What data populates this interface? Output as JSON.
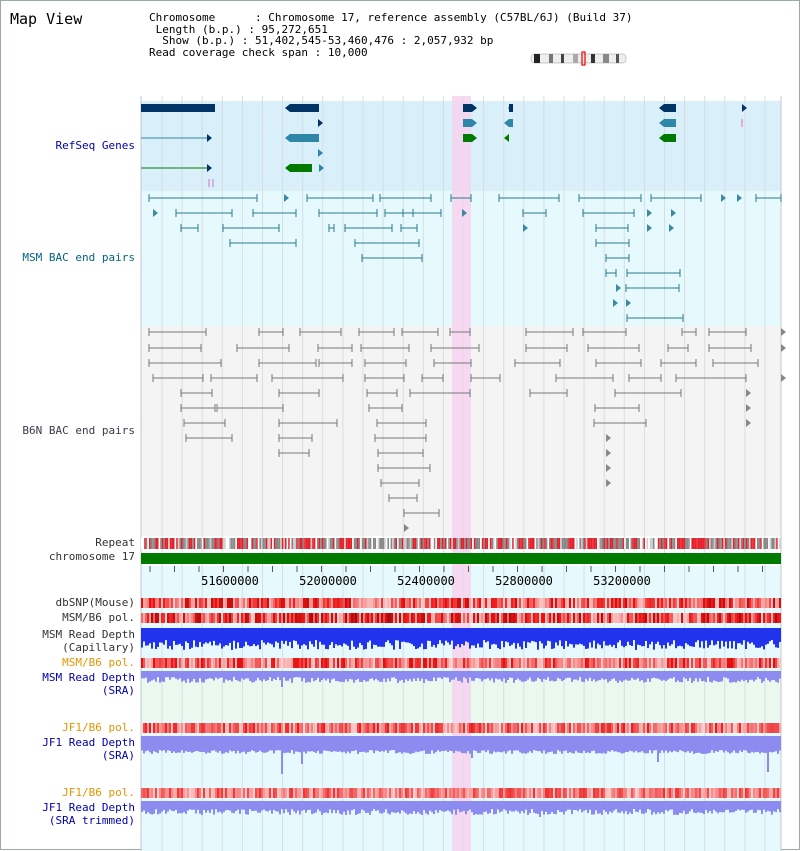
{
  "title": "Map View",
  "info": {
    "chromosome_key": "Chromosome",
    "chromosome_val": "Chromosome 17, reference assembly (C57BL/6J) (Build 37)",
    "length_key": "Length (b.p.)",
    "length_val": "95,272,651",
    "show_key": "Show (b.p.)",
    "show_val": "51,402,545-53,460,476 : 2,057,932 bp",
    "span_key": "Read coverage check span",
    "span_val": "10,000"
  },
  "tracks": {
    "refseq": "RefSeq Genes",
    "msm_bac": "MSM BAC end pairs",
    "b6n_bac": "B6N BAC end pairs",
    "repeat": "Repeat",
    "chromosome": "chromosome 17",
    "dbsnp": "dbSNP(Mouse)",
    "msm_b6_pol_1": "MSM/B6 pol.",
    "msm_depth_cap_1": "MSM Read Depth",
    "msm_depth_cap_2": "(Capillary)",
    "msm_b6_pol_2": "MSM/B6 pol.",
    "msm_depth_sra_1": "MSM Read Depth",
    "msm_depth_sra_2": "(SRA)",
    "jf1_b6_pol_1": "JF1/B6 pol.",
    "jf1_depth_sra_1": "JF1 Read Depth",
    "jf1_depth_sra_2": "(SRA)",
    "jf1_b6_pol_2": "JF1/B6 pol.",
    "jf1_depth_trim_1": "JF1 Read Depth",
    "jf1_depth_trim_2": "(SRA trimmed)"
  },
  "axis": {
    "ticks": [
      "51600000",
      "52000000",
      "52400000",
      "52800000",
      "53200000"
    ]
  },
  "colors": {
    "refseq_bg": "#d9f0fb",
    "msm_bg": "#e6fafe",
    "b6n_bg": "#f4f4f4",
    "highlight": "#f6d2ef",
    "refseq_navy": "#003366",
    "refseq_teal": "#2e86a8",
    "refseq_green": "#007a00",
    "msm_line": "#2a7a8c",
    "b6n_line": "#777777",
    "chrom_bar": "#007a00",
    "depth_blue": "#2233ee",
    "depth_light": "#8c8cf0"
  }
}
